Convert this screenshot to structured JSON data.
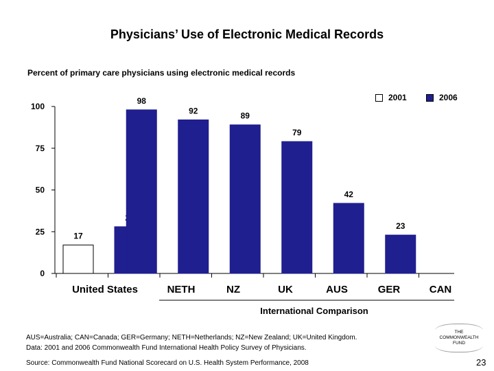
{
  "slide": {
    "title": "Physicians’ Use of Electronic Medical Records",
    "page_number": "23"
  },
  "footnotes": {
    "abbreviations": "AUS=Australia; CAN=Canada; GER=Germany; NETH=Netherlands; NZ=New Zealand; UK=United Kingdom.",
    "data_note": "Data: 2001 and 2006 Commonwealth Fund International Health Policy Survey of Physicians.",
    "source": "Source: Commonwealth Fund National Scorecard on U.S. Health System Performance, 2008"
  },
  "logo": {
    "line1": "THE",
    "line2": "COMMONWEALTH",
    "line3": "FUND"
  },
  "chart_data": {
    "type": "bar",
    "title": "Physicians’ Use of Electronic Medical Records",
    "subtitle": "Percent of primary care physicians using electronic medical records",
    "categories": [
      "United States",
      "NETH",
      "NZ",
      "UK",
      "AUS",
      "GER",
      "CAN"
    ],
    "series": [
      {
        "name": "2001",
        "color": "#ffffff",
        "values": [
          17,
          null,
          null,
          null,
          null,
          null,
          null
        ]
      },
      {
        "name": "2006",
        "color": "#1f1f8f",
        "values": [
          28,
          98,
          92,
          89,
          79,
          42,
          23
        ]
      }
    ],
    "ylim": [
      0,
      100
    ],
    "yticks": [
      0,
      25,
      50,
      75,
      100
    ],
    "group_label": "International Comparison",
    "legend_position": "top-right",
    "grid": false
  }
}
